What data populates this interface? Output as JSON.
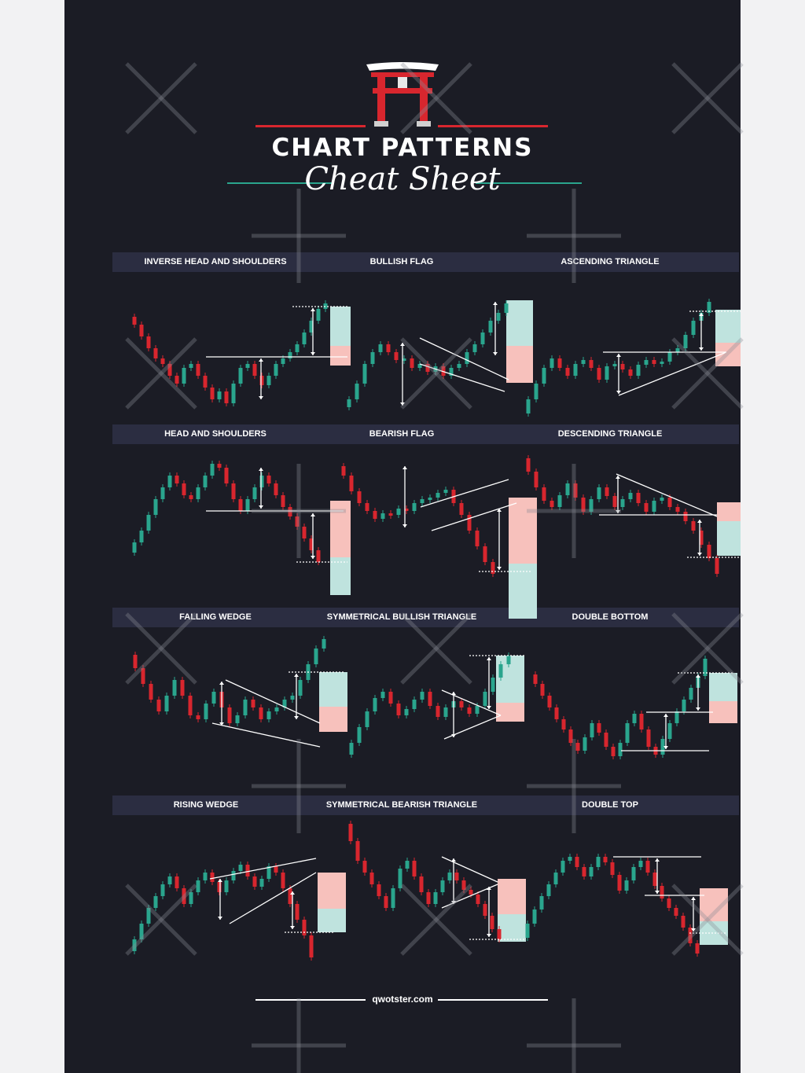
{
  "header": {
    "title": "CHART PATTERNS",
    "subtitle": "Cheat Sheet"
  },
  "footer": {
    "site": "qwotster.com"
  },
  "colors": {
    "background": "#1b1c25",
    "band": "#2b2d41",
    "bull": "#2aa58d",
    "bear": "#d8262e",
    "target_bull": "#bfe3de",
    "target_bear": "#f7c1bc",
    "line": "#ffffff"
  },
  "patterns": [
    {
      "label": "INVERSE HEAD AND SHOULDERS",
      "icon": "inverse-head-and-shoulders-chart"
    },
    {
      "label": "BULLISH FLAG",
      "icon": "bullish-flag-chart"
    },
    {
      "label": "ASCENDING TRIANGLE",
      "icon": "ascending-triangle-chart"
    },
    {
      "label": "HEAD AND SHOULDERS",
      "icon": "head-and-shoulders-chart"
    },
    {
      "label": "BEARISH FLAG",
      "icon": "bearish-flag-chart"
    },
    {
      "label": "DESCENDING TRIANGLE",
      "icon": "descending-triangle-chart"
    },
    {
      "label": "FALLING WEDGE",
      "icon": "falling-wedge-chart"
    },
    {
      "label": "SYMMETRICAL BULLISH  TRIANGLE",
      "icon": "symmetrical-bullish-triangle-chart"
    },
    {
      "label": "DOUBLE BOTTOM",
      "icon": "double-bottom-chart"
    },
    {
      "label": "RISING WEDGE",
      "icon": "rising-wedge-chart"
    },
    {
      "label": "SYMMETRICAL  BEARISH TRIANGLE",
      "icon": "symmetrical-bearish-triangle-chart"
    },
    {
      "label": "DOUBLE  TOP",
      "icon": "double-top-chart"
    }
  ]
}
